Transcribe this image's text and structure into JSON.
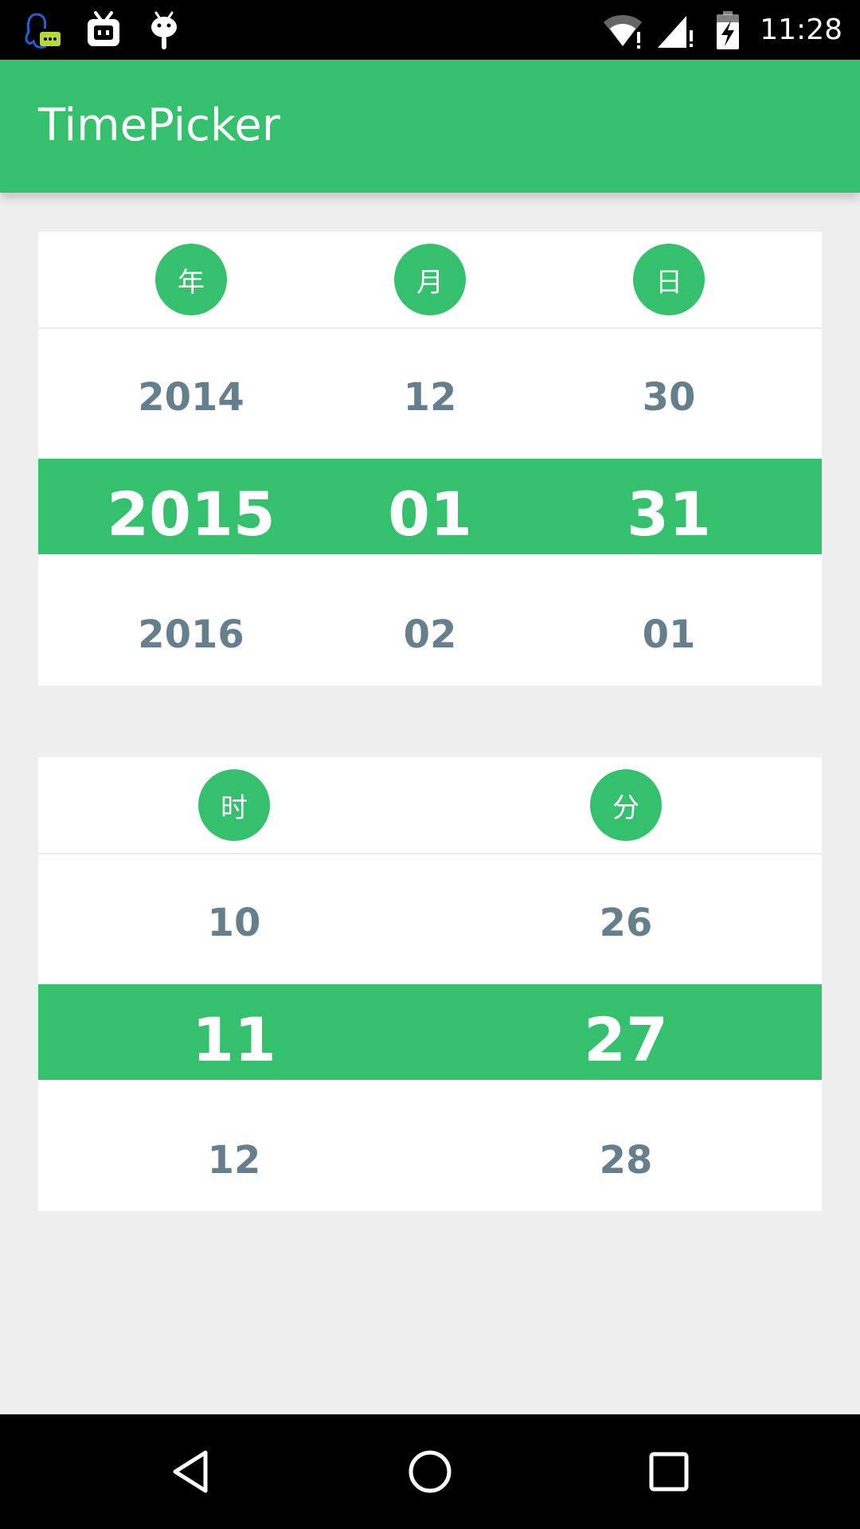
{
  "status_bar": {
    "time": "11:28",
    "left_icons": [
      "qq-icon",
      "bilibili-tv-icon",
      "android-icon"
    ],
    "right_icons": [
      "wifi-alert-icon",
      "signal-alert-icon",
      "battery-charging-icon"
    ]
  },
  "app_bar": {
    "title": "TimePicker",
    "color": "#35c06d"
  },
  "date_picker": {
    "columns": [
      {
        "label": "年",
        "prev": "2014",
        "selected": "2015",
        "next": "2016"
      },
      {
        "label": "月",
        "prev": "12",
        "selected": "01",
        "next": "02"
      },
      {
        "label": "日",
        "prev": "30",
        "selected": "31",
        "next": "01"
      }
    ]
  },
  "time_picker": {
    "columns": [
      {
        "label": "时",
        "prev": "10",
        "selected": "11",
        "next": "12"
      },
      {
        "label": "分",
        "prev": "26",
        "selected": "27",
        "next": "28"
      }
    ]
  },
  "nav_bar": {
    "icons": [
      "back-icon",
      "home-icon",
      "recent-apps-icon"
    ]
  }
}
